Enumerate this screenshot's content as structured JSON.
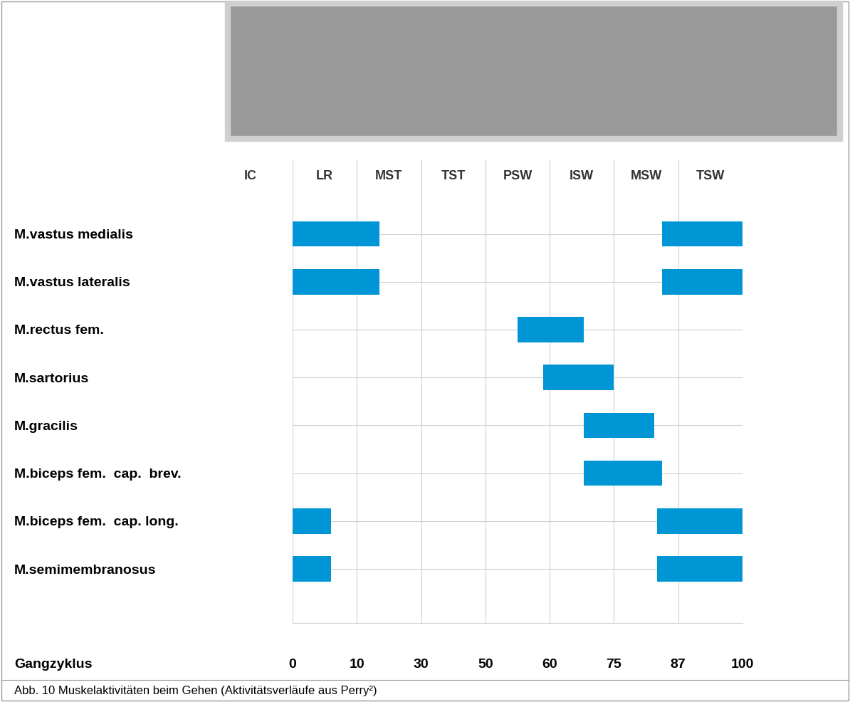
{
  "chart_data": {
    "type": "gantt",
    "caption": "Abb. 10 Muskelaktivitäten beim Gehen (Aktivitätsverläufe aus Perry²)",
    "xlabel": "Gangzyklus",
    "phases": [
      "IC",
      "LR",
      "MST",
      "TST",
      "PSW",
      "ISW",
      "MSW",
      "TSW"
    ],
    "xlim": [
      0,
      100
    ],
    "xticks": [
      0,
      10,
      30,
      50,
      60,
      75,
      87,
      100
    ],
    "grid": true,
    "color": "#0096d6",
    "rows": [
      {
        "name": "M.vastus medialis",
        "intervals": [
          [
            0,
            17
          ],
          [
            84,
            100
          ]
        ]
      },
      {
        "name": "M.vastus lateralis",
        "intervals": [
          [
            0,
            17
          ],
          [
            84,
            100
          ]
        ]
      },
      {
        "name": "M.rectus fem.",
        "intervals": [
          [
            55,
            68
          ]
        ]
      },
      {
        "name": "M.sartorius",
        "intervals": [
          [
            59,
            75
          ]
        ]
      },
      {
        "name": "M.gracilis",
        "intervals": [
          [
            68,
            82.5
          ]
        ]
      },
      {
        "name": "M.biceps fem.  cap.  brev.",
        "intervals": [
          [
            68,
            84
          ]
        ]
      },
      {
        "name": "M.biceps fem.  cap. long.",
        "intervals": [
          [
            0,
            6
          ],
          [
            83,
            100
          ]
        ]
      },
      {
        "name": "M.semimembranosus",
        "intervals": [
          [
            0,
            6
          ],
          [
            83,
            100
          ]
        ]
      }
    ]
  }
}
